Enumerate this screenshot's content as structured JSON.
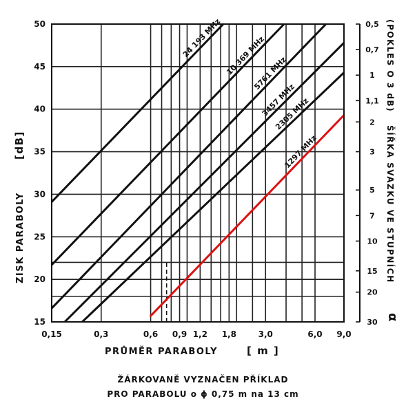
{
  "chart_data": {
    "type": "line",
    "x_scale": "log",
    "y_scale": "linear",
    "grid": true,
    "xlim": [
      0.15,
      9.0
    ],
    "ylim": [
      15,
      50
    ],
    "xlabel": "PRŮMĚR PARABOLY",
    "xunit": "[ m ]",
    "ylabel": "ZISK PARABOLY",
    "yunit": "[dB]",
    "y2label": "ŠÍŘKA SVAZKU VE STUPNÍCH",
    "y2note": "(POKLES O 3 dB)",
    "y2symbol": "α",
    "x_ticks": [
      "0,15",
      "0,3",
      "0,6",
      "0,9",
      "1,2",
      "1,8",
      "3,0",
      "6,0",
      "9,0"
    ],
    "x_tick_values": [
      0.15,
      0.3,
      0.6,
      0.9,
      1.2,
      1.8,
      3.0,
      6.0,
      9.0
    ],
    "x_grid_values": [
      0.15,
      0.3,
      0.6,
      0.7,
      0.8,
      0.9,
      1.0,
      1.2,
      1.4,
      1.6,
      1.8,
      2.0,
      2.5,
      3.0,
      4.0,
      5.0,
      6.0,
      9.0
    ],
    "y_ticks": [
      "15",
      "20",
      "25",
      "30",
      "35",
      "40",
      "45",
      "50"
    ],
    "y_tick_values": [
      15,
      20,
      25,
      30,
      35,
      40,
      45,
      50
    ],
    "y_grid_values": [
      15,
      18,
      20,
      22,
      25,
      30,
      35,
      40,
      45,
      50
    ],
    "y2_ticks": [
      "0,5",
      "0,7",
      "1",
      "1,1",
      "2",
      "3",
      "5",
      "7",
      "10",
      "15",
      "20",
      "30"
    ],
    "y2_tick_gain": [
      50,
      47,
      44,
      41,
      38.5,
      35,
      30.5,
      27.5,
      24.5,
      21,
      18.5,
      15
    ],
    "series": [
      {
        "name": "24 193 MHz",
        "x": [
          0.15,
          9.0
        ],
        "y": [
          29.1,
          64.7
        ],
        "color": "#111111"
      },
      {
        "name": "10 369 MHz",
        "x": [
          0.15,
          9.0
        ],
        "y": [
          21.7,
          57.3
        ],
        "color": "#111111"
      },
      {
        "name": "5761 MHz",
        "x": [
          0.15,
          9.0
        ],
        "y": [
          16.6,
          52.2
        ],
        "color": "#111111"
      },
      {
        "name": "3457 MHz",
        "x": [
          0.18,
          9.0
        ],
        "y": [
          15.0,
          47.8
        ],
        "color": "#111111"
      },
      {
        "name": "2305 MHz",
        "x": [
          0.23,
          9.0
        ],
        "y": [
          15.0,
          44.3
        ],
        "color": "#111111"
      },
      {
        "name": "1297 MHz",
        "x": [
          0.6,
          9.0
        ],
        "y": [
          15.7,
          39.3
        ],
        "color": "#dd1111"
      }
    ],
    "example": {
      "x": 0.75,
      "y": [
        15,
        22.2
      ],
      "style": "dashed"
    }
  },
  "footnote": {
    "line1": "ŽÁRKOVANĚ VYZNAČEN PŘÍKLAD",
    "line2": "PRO PARABOLU o ϕ 0,75 m  na 13 cm"
  }
}
